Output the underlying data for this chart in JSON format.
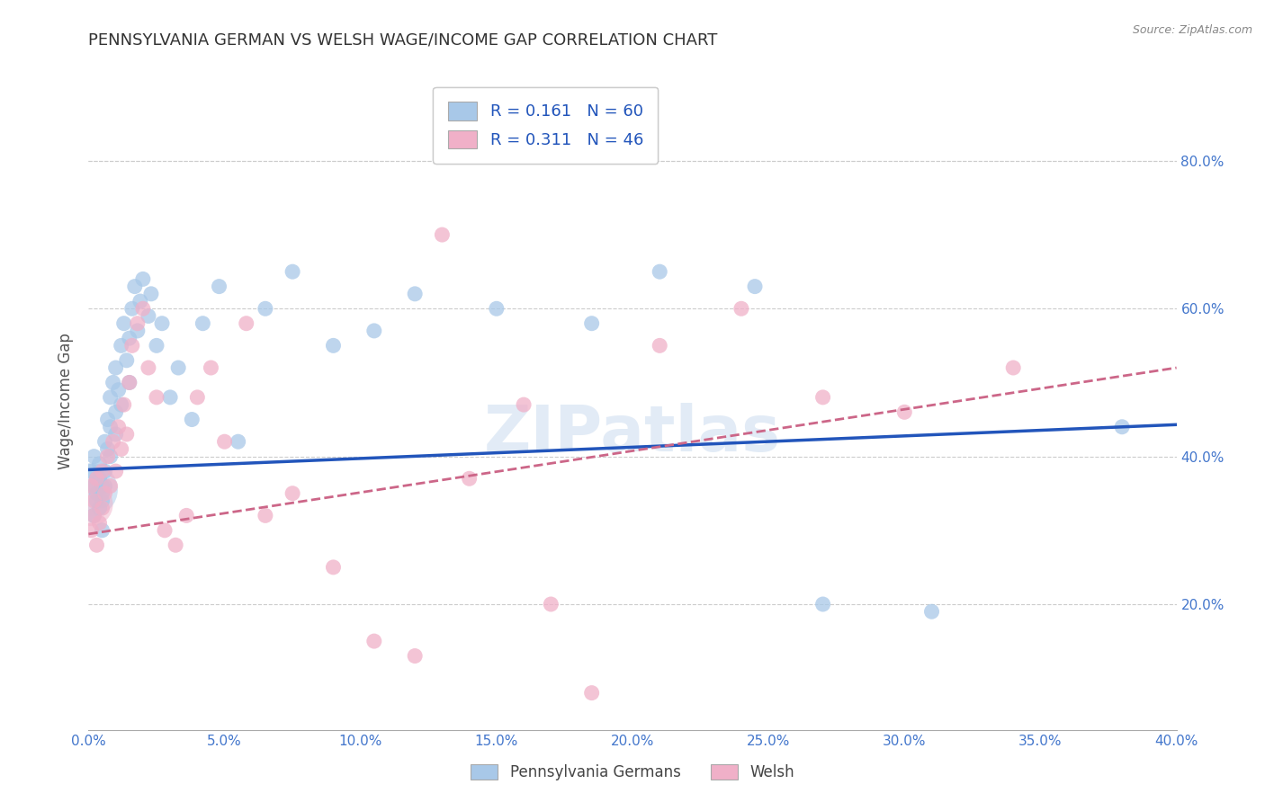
{
  "title": "PENNSYLVANIA GERMAN VS WELSH WAGE/INCOME GAP CORRELATION CHART",
  "source": "Source: ZipAtlas.com",
  "ylabel": "Wage/Income Gap",
  "xlim": [
    0.0,
    0.4
  ],
  "ylim": [
    0.03,
    0.92
  ],
  "xticks": [
    0.0,
    0.05,
    0.1,
    0.15,
    0.2,
    0.25,
    0.3,
    0.35,
    0.4
  ],
  "yticks": [
    0.2,
    0.4,
    0.6,
    0.8
  ],
  "blue_scatter_color": "#a8c8e8",
  "pink_scatter_color": "#f0b0c8",
  "blue_line_color": "#2255bb",
  "pink_line_color": "#cc6688",
  "title_color": "#333333",
  "tick_label_color": "#4477cc",
  "background_color": "#ffffff",
  "grid_color": "#cccccc",
  "watermark_color": "#d0dff0",
  "R_blue": 0.161,
  "N_blue": 60,
  "R_pink": 0.311,
  "N_pink": 46,
  "legend_label_blue": "Pennsylvania Germans",
  "legend_label_pink": "Welsh",
  "blue_scatter_x": [
    0.001,
    0.002,
    0.002,
    0.003,
    0.003,
    0.004,
    0.004,
    0.005,
    0.005,
    0.005,
    0.006,
    0.006,
    0.007,
    0.007,
    0.008,
    0.008,
    0.009,
    0.01,
    0.01,
    0.011,
    0.012,
    0.013,
    0.014,
    0.015,
    0.016,
    0.017,
    0.018,
    0.019,
    0.02,
    0.022,
    0.023,
    0.025,
    0.027,
    0.03,
    0.033,
    0.038,
    0.042,
    0.048,
    0.055,
    0.065,
    0.075,
    0.09,
    0.105,
    0.12,
    0.15,
    0.185,
    0.21,
    0.245,
    0.27,
    0.31,
    0.002,
    0.003,
    0.004,
    0.005,
    0.006,
    0.008,
    0.01,
    0.012,
    0.015,
    0.38
  ],
  "blue_scatter_y": [
    0.38,
    0.36,
    0.4,
    0.34,
    0.37,
    0.33,
    0.39,
    0.35,
    0.3,
    0.36,
    0.42,
    0.38,
    0.45,
    0.41,
    0.48,
    0.44,
    0.5,
    0.46,
    0.52,
    0.49,
    0.55,
    0.58,
    0.53,
    0.56,
    0.6,
    0.63,
    0.57,
    0.61,
    0.64,
    0.59,
    0.62,
    0.55,
    0.58,
    0.48,
    0.52,
    0.45,
    0.58,
    0.63,
    0.42,
    0.6,
    0.65,
    0.55,
    0.57,
    0.62,
    0.6,
    0.58,
    0.65,
    0.63,
    0.2,
    0.19,
    0.32,
    0.35,
    0.37,
    0.34,
    0.36,
    0.4,
    0.43,
    0.47,
    0.5,
    0.44
  ],
  "pink_scatter_x": [
    0.001,
    0.002,
    0.003,
    0.004,
    0.005,
    0.005,
    0.006,
    0.007,
    0.008,
    0.009,
    0.01,
    0.011,
    0.012,
    0.013,
    0.014,
    0.015,
    0.016,
    0.018,
    0.02,
    0.022,
    0.025,
    0.028,
    0.032,
    0.036,
    0.04,
    0.045,
    0.05,
    0.058,
    0.065,
    0.075,
    0.09,
    0.105,
    0.12,
    0.14,
    0.16,
    0.185,
    0.21,
    0.24,
    0.27,
    0.3,
    0.001,
    0.002,
    0.003,
    0.13,
    0.34,
    0.17
  ],
  "pink_scatter_y": [
    0.36,
    0.34,
    0.37,
    0.31,
    0.33,
    0.38,
    0.35,
    0.4,
    0.36,
    0.42,
    0.38,
    0.44,
    0.41,
    0.47,
    0.43,
    0.5,
    0.55,
    0.58,
    0.6,
    0.52,
    0.48,
    0.3,
    0.28,
    0.32,
    0.48,
    0.52,
    0.42,
    0.58,
    0.32,
    0.35,
    0.25,
    0.15,
    0.13,
    0.37,
    0.47,
    0.08,
    0.55,
    0.6,
    0.48,
    0.46,
    0.3,
    0.32,
    0.28,
    0.7,
    0.52,
    0.2
  ]
}
